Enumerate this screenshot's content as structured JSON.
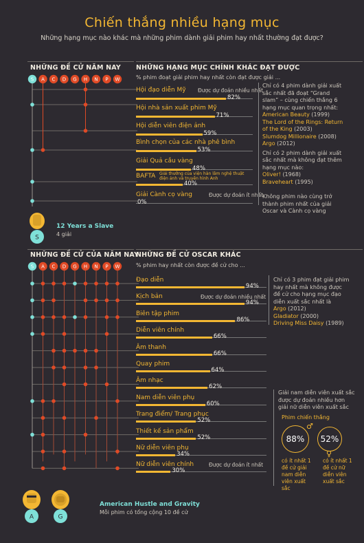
{
  "header": {
    "title": "Chiến thắng nhiều hạng mục",
    "subtitle": "Những hạng mục nào khác mà những phim dành giải phim hay nhất thường đạt được?"
  },
  "colors": {
    "background": "#2d2a30",
    "accent": "#f3b733",
    "red": "#e04a26",
    "teal": "#7fe0d8",
    "text": "#e8e3d8"
  },
  "section1": {
    "left_heading": "NHỮNG ĐỀ CỬ NĂM NAY",
    "right_heading": "NHỮNG HẠNG MỤC CHÍNH KHÁC ĐẠT ĐƯỢC",
    "intro": "% phim đoạt giải phim hay nhất còn đạt được giải ...",
    "letters": [
      "S",
      "A",
      "C",
      "D",
      "G",
      "H",
      "N",
      "P",
      "W"
    ],
    "categories": [
      {
        "name": "Hội đạo diễn Mỹ",
        "percent": 82,
        "pct_label": "82%",
        "predictor": "Được dự đoán nhiều nhất"
      },
      {
        "name": "Hội nhà sản xuất phim Mỹ",
        "percent": 71,
        "pct_label": "71%",
        "predictor": ""
      },
      {
        "name": "Hội diễn viên điện ảnh",
        "percent": 59,
        "pct_label": "59%",
        "predictor": ""
      },
      {
        "name": "Bình chọn của các nhà phê bình",
        "percent": 53,
        "pct_label": "53%",
        "predictor": ""
      },
      {
        "name": "Giải Quả cầu vàng",
        "percent": 48,
        "pct_label": "48%",
        "predictor": ""
      },
      {
        "name": "BAFTA",
        "percent": 40,
        "pct_label": "40%",
        "predictor": "",
        "sub": "Giải thưởng của viện hàn lâm nghệ thuật điện ảnh và truyền hình Anh"
      },
      {
        "name": "Giải Cành cọ vàng",
        "percent": 0,
        "pct_label": "0%",
        "predictor": "Được dự đoán ít nhất"
      }
    ],
    "note1_text": "Chỉ có 4 phim dành giải xuất sắc nhất đã đoạt “Grand slam” – cùng chiến thắng 6 hạng mục quan trọng nhất:",
    "note1_films": [
      {
        "title": "American Beauty",
        "year": "(1999)"
      },
      {
        "title": "The Lord of the Rings: Return of the King",
        "year": "(2003)"
      },
      {
        "title": "Slumdog Millionaire",
        "year": "(2008)"
      },
      {
        "title": "Argo",
        "year": "(2012)"
      }
    ],
    "note2_text": "Chỉ có 2 phim dành giải xuất sắc nhất mà không đạt thêm hạng mục nào:",
    "note2_films": [
      {
        "title": "Oliver!",
        "year": "(1968)"
      },
      {
        "title": "Braveheart",
        "year": "(1995)"
      }
    ],
    "note3_text": "Không phim nào cùng trở thành phim nhất của giải Oscar và Cành cọ vàng",
    "winner": {
      "badge_letter": "S",
      "title": "12 Years a Slave",
      "sub": "4 giải"
    }
  },
  "section2": {
    "left_heading": "NHỮNG ĐỀ CỬ CỦA NĂM NAY",
    "right_heading": "NHỮNG ĐỀ CỬ OSCAR KHÁC",
    "intro": "% phim hay nhất còn được đề cử cho ...",
    "letters": [
      "S",
      "A",
      "C",
      "D",
      "G",
      "H",
      "N",
      "P",
      "W"
    ],
    "categories": [
      {
        "name": "Đạo diễn",
        "percent": 94,
        "pct_label": "94%",
        "predictor": ""
      },
      {
        "name": "Kịch bản",
        "percent": 94,
        "pct_label": "94%",
        "predictor": "Được dự đoán nhiều nhất"
      },
      {
        "name": "Biên tập phim",
        "percent": 86,
        "pct_label": "86%",
        "predictor": ""
      },
      {
        "name": "Diễn viên chính",
        "percent": 66,
        "pct_label": "66%",
        "predictor": ""
      },
      {
        "name": "Âm thanh",
        "percent": 66,
        "pct_label": "66%",
        "predictor": ""
      },
      {
        "name": "Quay phim",
        "percent": 64,
        "pct_label": "64%",
        "predictor": ""
      },
      {
        "name": "Âm nhạc",
        "percent": 62,
        "pct_label": "62%",
        "predictor": ""
      },
      {
        "name": "Nam diễn viên phụ",
        "percent": 60,
        "pct_label": "60%",
        "predictor": ""
      },
      {
        "name": "Trang điểm/ Trang phục",
        "percent": 52,
        "pct_label": "52%",
        "predictor": ""
      },
      {
        "name": "Thiết kế sản phẩm",
        "percent": 52,
        "pct_label": "52%",
        "predictor": ""
      },
      {
        "name": "Nữ diễn viên phụ",
        "percent": 34,
        "pct_label": "34%",
        "predictor": ""
      },
      {
        "name": "Nữ diễn viên chính",
        "percent": 30,
        "pct_label": "30%",
        "predictor": "Được dự đoán ít nhất"
      }
    ],
    "note1_text": "Chỉ có 3 phim đạt giải phim hay nhất mà không được đề cử cho hạng mục đạo diễn xuất sắc nhất là",
    "note1_films": [
      {
        "title": "Argo",
        "year": "(2012)"
      },
      {
        "title": "Gladiator",
        "year": "(2000)"
      },
      {
        "title": "Driving Miss Daisy",
        "year": "(1989)"
      }
    ],
    "note2_text": "Giải nam diễn viên xuất sắc được dự đoán nhiều hơn giải nữ diễn viên xuất sắc",
    "note2_heading": "Phim chiến thắng",
    "stat_male": {
      "value": "88%",
      "caption": "có ít nhất 1 đề cử giải nam diễn viên xuất sắc"
    },
    "stat_female": {
      "value": "52%",
      "caption": "có ít nhất 1 đề cử nữ diễn viên xuất sắc"
    },
    "winner": {
      "badge_letters": [
        "A",
        "G"
      ],
      "title": "American Hustle and Gravity",
      "sub": "Mỗi phim có tổng cộng 10 đề cử"
    }
  }
}
